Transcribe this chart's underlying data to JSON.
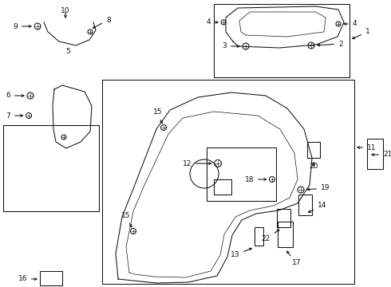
{
  "bg": "#ffffff",
  "lc": "#111111",
  "fs": 6.5,
  "lw": 0.75
}
